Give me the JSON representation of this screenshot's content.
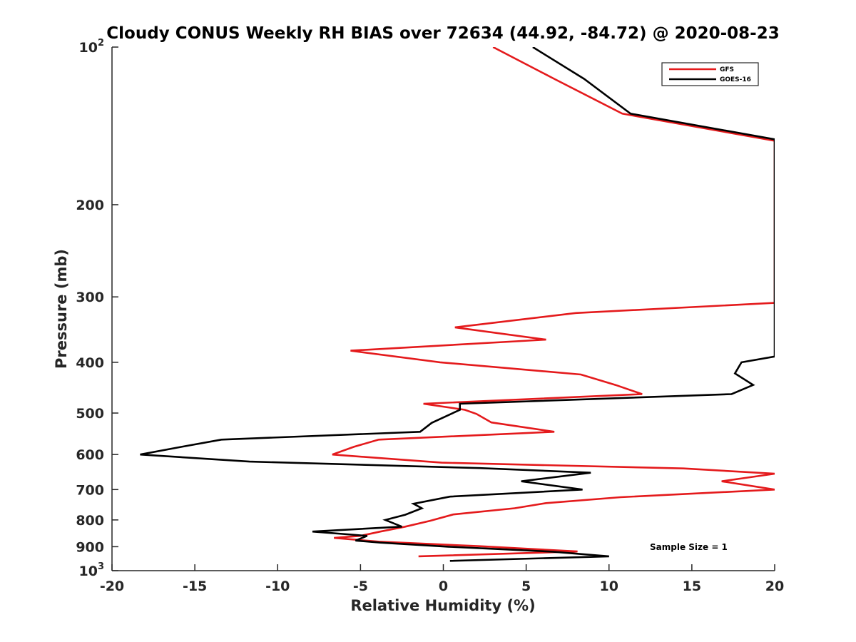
{
  "chart_data": {
    "type": "line",
    "title": "Cloudy CONUS Weekly RH BIAS over 72634 (44.92, -84.72) @ 2020-08-23",
    "xlabel": "Relative Humidity (%)",
    "ylabel": "Pressure (mb)",
    "xlim": [
      -20,
      20
    ],
    "ylim": [
      100,
      1000
    ],
    "y_scale": "log",
    "y_reversed": true,
    "grid": false,
    "legend_position": "top-right",
    "x_ticks": [
      "-20",
      "-15",
      "-10",
      "-5",
      "0",
      "5",
      "10",
      "15",
      "20"
    ],
    "y_ticks": [
      {
        "value": 100,
        "base": "10",
        "exp": "2"
      },
      {
        "value": 200,
        "label": "200"
      },
      {
        "value": 300,
        "label": "300"
      },
      {
        "value": 400,
        "label": "400"
      },
      {
        "value": 500,
        "label": "500"
      },
      {
        "value": 600,
        "label": "600"
      },
      {
        "value": 700,
        "label": "700"
      },
      {
        "value": 800,
        "label": "800"
      },
      {
        "value": 900,
        "label": "900"
      },
      {
        "value": 1000,
        "base": "10",
        "exp": "3"
      }
    ],
    "annotation": "Sample Size = 1",
    "series": [
      {
        "name": "GFS",
        "color": "#e41a1c",
        "points": [
          [
            3,
            100
          ],
          [
            6.7,
            115
          ],
          [
            10.8,
            134
          ],
          [
            20,
            151
          ],
          [
            20,
            308
          ],
          [
            8,
            322
          ],
          [
            0.7,
            343
          ],
          [
            6.2,
            362
          ],
          [
            -5.6,
            380
          ],
          [
            -0.2,
            400
          ],
          [
            8.3,
            422
          ],
          [
            10.4,
            442
          ],
          [
            12,
            460
          ],
          [
            -1.2,
            480
          ],
          [
            1.3,
            493
          ],
          [
            2,
            502
          ],
          [
            2.9,
            521
          ],
          [
            6.7,
            543
          ],
          [
            -3.9,
            562
          ],
          [
            -5.4,
            580
          ],
          [
            -6.7,
            600
          ],
          [
            -0.1,
            622
          ],
          [
            14.5,
            638
          ],
          [
            20,
            653
          ],
          [
            16.8,
            675
          ],
          [
            20,
            700
          ],
          [
            10.7,
            724
          ],
          [
            6.2,
            743
          ],
          [
            4.3,
            760
          ],
          [
            0.6,
            781
          ],
          [
            -0.8,
            803
          ],
          [
            -2.3,
            824
          ],
          [
            -3.8,
            842
          ],
          [
            -5,
            858
          ],
          [
            -6.6,
            866
          ],
          [
            -3.9,
            880
          ],
          [
            2.2,
            898
          ],
          [
            8.1,
            919
          ],
          [
            -1.5,
            939
          ]
        ]
      },
      {
        "name": "GOES-16",
        "color": "#000000",
        "points": [
          [
            5.4,
            100
          ],
          [
            8.5,
            115
          ],
          [
            11.3,
            134
          ],
          [
            20,
            150
          ],
          [
            20,
            390
          ],
          [
            18,
            400
          ],
          [
            17.6,
            420
          ],
          [
            18.7,
            442
          ],
          [
            17.4,
            460
          ],
          [
            1,
            480
          ],
          [
            1,
            493
          ],
          [
            -0.7,
            522
          ],
          [
            -1.4,
            543
          ],
          [
            -13.4,
            562
          ],
          [
            -15.8,
            580
          ],
          [
            -18.3,
            600
          ],
          [
            -11.7,
            619
          ],
          [
            2.2,
            637
          ],
          [
            8.9,
            650
          ],
          [
            4.7,
            675
          ],
          [
            8.4,
            700
          ],
          [
            0.4,
            722
          ],
          [
            -1.8,
            745
          ],
          [
            -1.3,
            760
          ],
          [
            -2.3,
            782
          ],
          [
            -3.5,
            800
          ],
          [
            -2.5,
            824
          ],
          [
            -7.9,
            842
          ],
          [
            -4.6,
            858
          ],
          [
            -5.3,
            876
          ],
          [
            -3.8,
            884
          ],
          [
            0.3,
            900
          ],
          [
            6.6,
            920
          ],
          [
            10,
            939
          ],
          [
            0.4,
            958
          ]
        ]
      }
    ]
  }
}
